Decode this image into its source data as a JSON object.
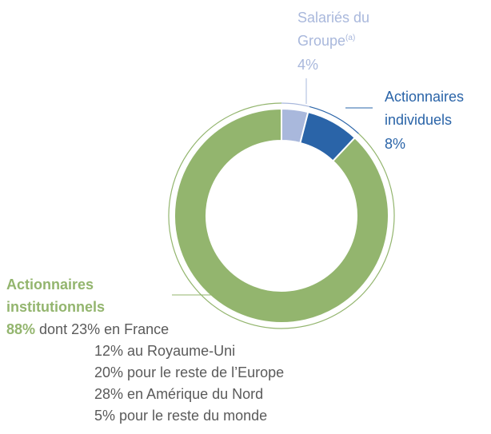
{
  "chart_data": {
    "type": "pie",
    "donut": true,
    "categories": [
      [
        "Salariés du",
        "Groupe"
      ],
      [
        "Actionnaires",
        "individuels"
      ],
      [
        "Actionnaires",
        "institutionnels"
      ]
    ],
    "category_notes": [
      "(a)",
      null,
      null
    ],
    "values": [
      4,
      8,
      88
    ],
    "value_labels": [
      "4%",
      "8%",
      "88%"
    ],
    "colors": [
      "#a9b8dc",
      "#2a64a8",
      "#93b56e"
    ],
    "breakdown": {
      "intro": "dont",
      "values": [
        23,
        12,
        20,
        28,
        5
      ],
      "value_labels": [
        "23%",
        "12%",
        "20%",
        "28%",
        "5%"
      ],
      "labels": [
        "en France",
        "au Royaume-Uni",
        "pour le reste de l’Europe",
        "en Amérique du Nord",
        "pour le reste du monde"
      ]
    }
  }
}
